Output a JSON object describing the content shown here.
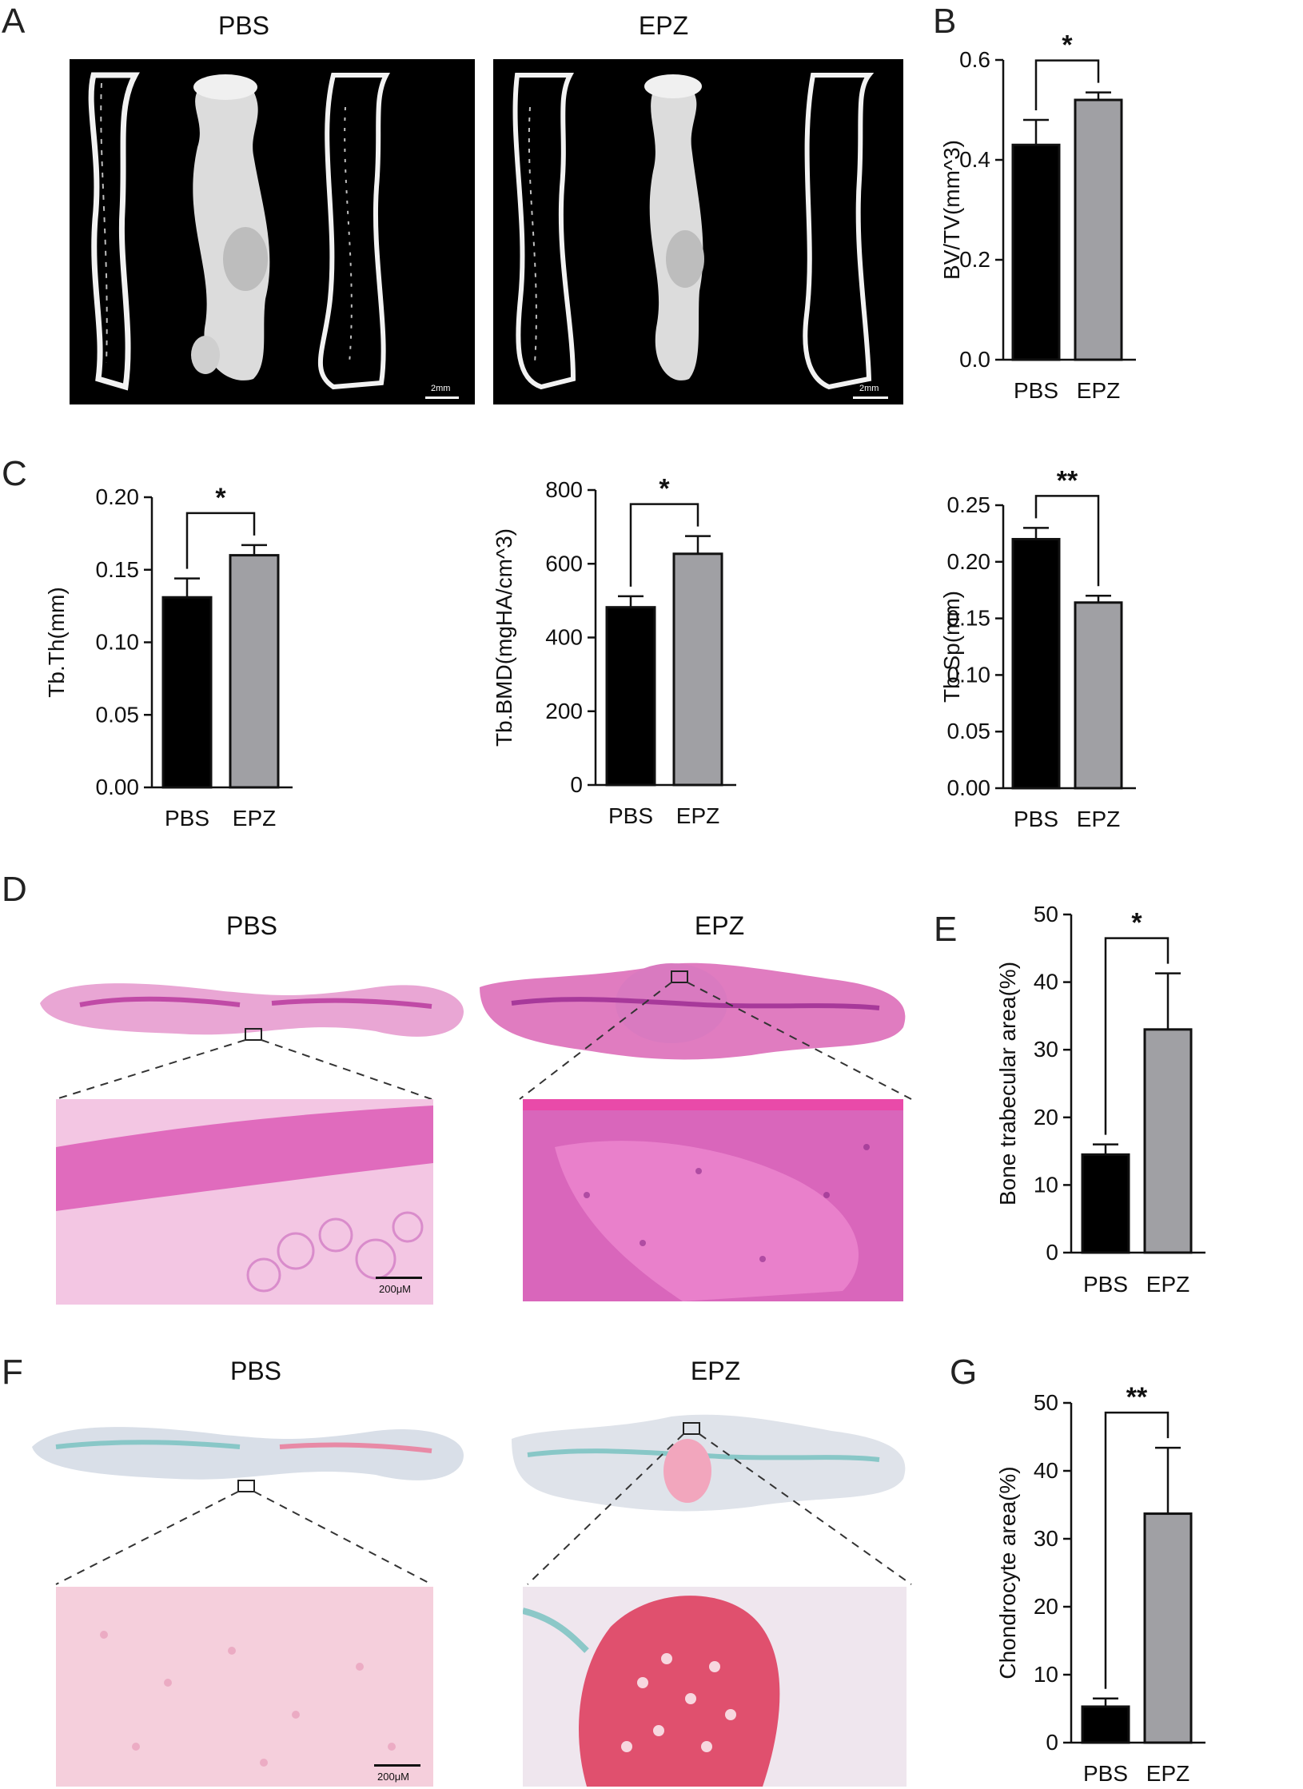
{
  "panel_letters": {
    "A": "A",
    "B": "B",
    "C": "C",
    "D": "D",
    "E": "E",
    "F": "F",
    "G": "G"
  },
  "group_labels": {
    "pbs": "PBS",
    "epz": "EPZ"
  },
  "scale_bars": {
    "microct": "2mm",
    "histo": "200μM"
  },
  "colors": {
    "pbs_bar": "#000000",
    "epz_bar": "#a0a0a4",
    "he_stain": "#e070b8",
    "safranin": "#e88aa6",
    "fast_green": "#8cc8c8"
  },
  "chart_data": [
    {
      "id": "B",
      "type": "bar",
      "categories": [
        "PBS",
        "EPZ"
      ],
      "values": [
        0.43,
        0.52
      ],
      "errors": [
        0.05,
        0.015
      ],
      "ylabel": "BV/TV(mm^3)",
      "ylim": [
        0,
        0.6
      ],
      "yticks": [
        "0.0",
        "0.2",
        "0.4",
        "0.6"
      ],
      "significance": "*"
    },
    {
      "id": "C1",
      "type": "bar",
      "categories": [
        "PBS",
        "EPZ"
      ],
      "values": [
        0.131,
        0.16
      ],
      "errors": [
        0.013,
        0.007
      ],
      "ylabel": "Tb.Th(mm)",
      "ylim": [
        0,
        0.2
      ],
      "yticks": [
        "0.00",
        "0.05",
        "0.10",
        "0.15",
        "0.20"
      ],
      "significance": "*"
    },
    {
      "id": "C2",
      "type": "bar",
      "categories": [
        "PBS",
        "EPZ"
      ],
      "values": [
        482,
        627
      ],
      "errors": [
        30,
        48
      ],
      "ylabel": "Tb.BMD(mgHA/cm^3)",
      "ylim": [
        0,
        800
      ],
      "yticks": [
        "0",
        "200",
        "400",
        "600",
        "800"
      ],
      "significance": "*"
    },
    {
      "id": "C3",
      "type": "bar",
      "categories": [
        "PBS",
        "EPZ"
      ],
      "values": [
        0.22,
        0.164
      ],
      "errors": [
        0.01,
        0.006
      ],
      "ylabel": "Tb.Sp(mm)",
      "ylim": [
        0,
        0.25
      ],
      "yticks": [
        "0.00",
        "0.05",
        "0.10",
        "0.15",
        "0.20",
        "0.25"
      ],
      "significance": "**"
    },
    {
      "id": "E",
      "type": "bar",
      "categories": [
        "PBS",
        "EPZ"
      ],
      "values": [
        14.5,
        33
      ],
      "errors": [
        1.5,
        8.3
      ],
      "ylabel": "Bone trabecular area(%)",
      "ylim": [
        0,
        50
      ],
      "yticks": [
        "0",
        "10",
        "20",
        "30",
        "40",
        "50"
      ],
      "significance": "*"
    },
    {
      "id": "G",
      "type": "bar",
      "categories": [
        "PBS",
        "EPZ"
      ],
      "values": [
        5.3,
        33.7
      ],
      "errors": [
        1.2,
        9.7
      ],
      "ylabel": "Chondrocyte area(%)",
      "ylim": [
        0,
        50
      ],
      "yticks": [
        "0",
        "10",
        "20",
        "30",
        "40",
        "50"
      ],
      "significance": "**"
    }
  ]
}
